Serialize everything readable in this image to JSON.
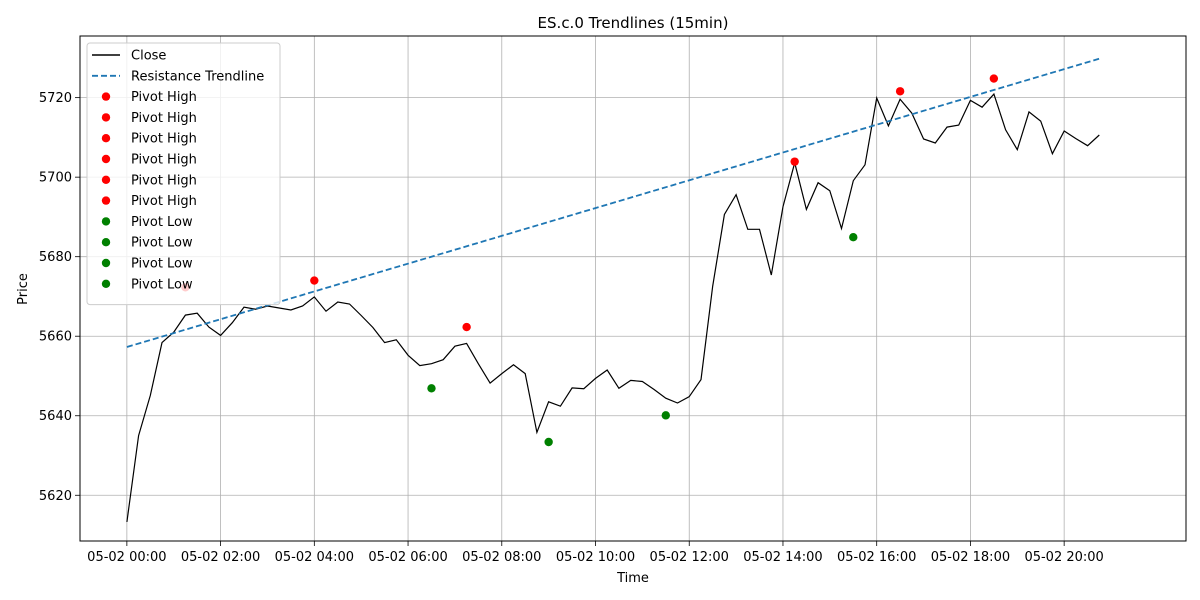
{
  "chart_data": {
    "type": "line",
    "title": "ES.c.0 Trendlines (15min)",
    "xlabel": "Time",
    "ylabel": "Price",
    "x_unit": "hours since 05-02 00:00",
    "xlim": [
      -1.0,
      22.6
    ],
    "ylim": [
      5608.5,
      5735.5
    ],
    "xticks": [
      {
        "value": 0,
        "label": "05-02 00:00"
      },
      {
        "value": 2,
        "label": "05-02 02:00"
      },
      {
        "value": 4,
        "label": "05-02 04:00"
      },
      {
        "value": 6,
        "label": "05-02 06:00"
      },
      {
        "value": 8,
        "label": "05-02 08:00"
      },
      {
        "value": 10,
        "label": "05-02 10:00"
      },
      {
        "value": 12,
        "label": "05-02 12:00"
      },
      {
        "value": 14,
        "label": "05-02 14:00"
      },
      {
        "value": 16,
        "label": "05-02 16:00"
      },
      {
        "value": 18,
        "label": "05-02 18:00"
      },
      {
        "value": 20,
        "label": "05-02 20:00"
      }
    ],
    "yticks": [
      5620,
      5640,
      5660,
      5680,
      5700,
      5720
    ],
    "grid": true,
    "legend_position": "top-left",
    "series": [
      {
        "name": "Close",
        "kind": "line",
        "color": "#000000",
        "x": [
          0,
          0.25,
          0.5,
          0.75,
          1,
          1.25,
          1.5,
          1.75,
          2,
          2.25,
          2.5,
          2.75,
          3,
          3.25,
          3.5,
          3.75,
          4,
          4.25,
          4.5,
          4.75,
          5,
          5.25,
          5.5,
          5.75,
          6,
          6.25,
          6.5,
          6.75,
          7,
          7.25,
          7.5,
          7.75,
          8,
          8.25,
          8.5,
          8.75,
          9,
          9.25,
          9.5,
          9.75,
          10,
          10.25,
          10.5,
          10.75,
          11,
          11.25,
          11.5,
          11.75,
          12,
          12.25,
          12.5,
          12.75,
          13,
          13.25,
          13.5,
          13.75,
          14,
          14.25,
          14.5,
          14.75,
          15,
          15.25,
          15.5,
          15.75,
          16,
          16.25,
          16.5,
          16.75,
          17,
          17.25,
          17.5,
          17.75,
          18,
          18.25,
          18.5,
          18.75,
          19,
          19.25,
          19.5,
          19.75,
          20,
          20.25,
          20.5,
          20.75
        ],
        "y": [
          5613.3,
          5635,
          5645.1,
          5658.4,
          5661,
          5665.3,
          5665.8,
          5662.3,
          5660.2,
          5663.4,
          5667.3,
          5666.8,
          5667.6,
          5667.1,
          5666.6,
          5667.6,
          5669.9,
          5666.3,
          5668.6,
          5668.1,
          5665.2,
          5662.2,
          5658.4,
          5659.1,
          5655.2,
          5652.6,
          5653.1,
          5654.1,
          5657.5,
          5658.2,
          5653.1,
          5648.2,
          5650.6,
          5652.8,
          5650.6,
          5635.8,
          5643.5,
          5642.4,
          5647,
          5646.8,
          5649.4,
          5651.5,
          5646.9,
          5648.9,
          5648.6,
          5646.6,
          5644.4,
          5643.2,
          5644.8,
          5649.1,
          5672.6,
          5690.6,
          5695.6,
          5686.9,
          5686.9,
          5675.4,
          5692.6,
          5703.6,
          5691.9,
          5698.6,
          5696.6,
          5687.1,
          5699.1,
          5703.1,
          5719.9,
          5712.9,
          5719.6,
          5716.1,
          5709.6,
          5708.6,
          5712.6,
          5713.1,
          5719.3,
          5717.6,
          5720.9,
          5711.9,
          5706.9,
          5716.4,
          5714.1,
          5705.9,
          5711.6,
          5709.7,
          5707.9,
          5710.6
        ]
      },
      {
        "name": "Resistance Trendline",
        "kind": "dashed-line",
        "color": "#1f77b4",
        "x": [
          0,
          20.75
        ],
        "y": [
          5657.3,
          5729.8
        ]
      },
      {
        "name": "Pivot High",
        "kind": "scatter",
        "color": "#ff0000",
        "x": [
          1.25,
          4.0,
          7.25,
          14.25,
          16.5,
          18.5
        ],
        "y": [
          5672.3,
          5674.0,
          5662.3,
          5703.9,
          5721.6,
          5724.8
        ]
      },
      {
        "name": "Pivot Low",
        "kind": "scatter",
        "color": "#008000",
        "x": [
          6.5,
          9.0,
          11.5,
          15.5
        ],
        "y": [
          5646.9,
          5633.4,
          5640.1,
          5684.9
        ]
      }
    ],
    "legend_entries": [
      {
        "label": "Close",
        "marker": "line",
        "color": "#000000"
      },
      {
        "label": "Resistance Trendline",
        "marker": "dashed",
        "color": "#1f77b4"
      },
      {
        "label": "Pivot High",
        "marker": "dot",
        "color": "#ff0000"
      },
      {
        "label": "Pivot High",
        "marker": "dot",
        "color": "#ff0000"
      },
      {
        "label": "Pivot High",
        "marker": "dot",
        "color": "#ff0000"
      },
      {
        "label": "Pivot High",
        "marker": "dot",
        "color": "#ff0000"
      },
      {
        "label": "Pivot High",
        "marker": "dot",
        "color": "#ff0000"
      },
      {
        "label": "Pivot High",
        "marker": "dot",
        "color": "#ff0000"
      },
      {
        "label": "Pivot Low",
        "marker": "dot",
        "color": "#008000"
      },
      {
        "label": "Pivot Low",
        "marker": "dot",
        "color": "#008000"
      },
      {
        "label": "Pivot Low",
        "marker": "dot",
        "color": "#008000"
      },
      {
        "label": "Pivot Low",
        "marker": "dot",
        "color": "#008000"
      }
    ]
  }
}
